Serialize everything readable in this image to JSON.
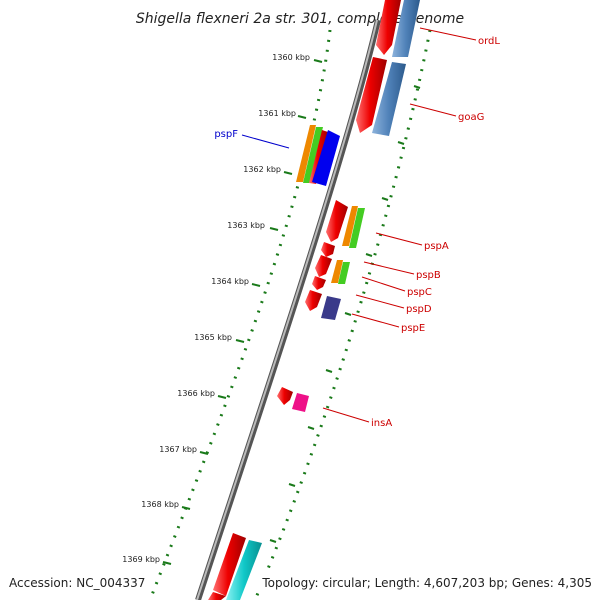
{
  "title": "Shigella flexneri 2a str. 301, complete genome",
  "footer": {
    "accession": "Accession: NC_004337",
    "summary": "Topology: circular; Length: 4,607,203 bp; Genes: 4,305"
  },
  "ruler_ticks": [
    "1360 kbp",
    "1361 kbp",
    "1362 kbp",
    "1363 kbp",
    "1364 kbp",
    "1365 kbp",
    "1366 kbp",
    "1367 kbp",
    "1368 kbp",
    "1369 kbp"
  ],
  "gene_labels": {
    "ordL": "ordL",
    "goaG": "goaG",
    "pspF": "pspF",
    "pspA": "pspA",
    "pspB": "pspB",
    "pspC": "pspC",
    "pspD": "pspD",
    "pspE": "pspE",
    "insA": "insA"
  },
  "colors": {
    "backbone": "#7a7a7a",
    "ruler_dots": "#1a7a1a",
    "label_line": "#cc0000",
    "label_line_blue": "#0000cc",
    "gene_red": "#ee0000",
    "feature_orange": "#ee8800",
    "feature_green": "#44cc22",
    "feature_blue": "#0000ee",
    "feature_steel": "#4f81b8",
    "feature_purple": "#3a3a8a",
    "feature_magenta": "#ee1188",
    "feature_cyan": "#10c8c8"
  }
}
